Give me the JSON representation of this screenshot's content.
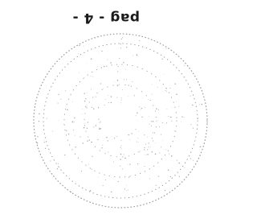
{
  "page": {
    "label": "pag - 4 -"
  }
}
